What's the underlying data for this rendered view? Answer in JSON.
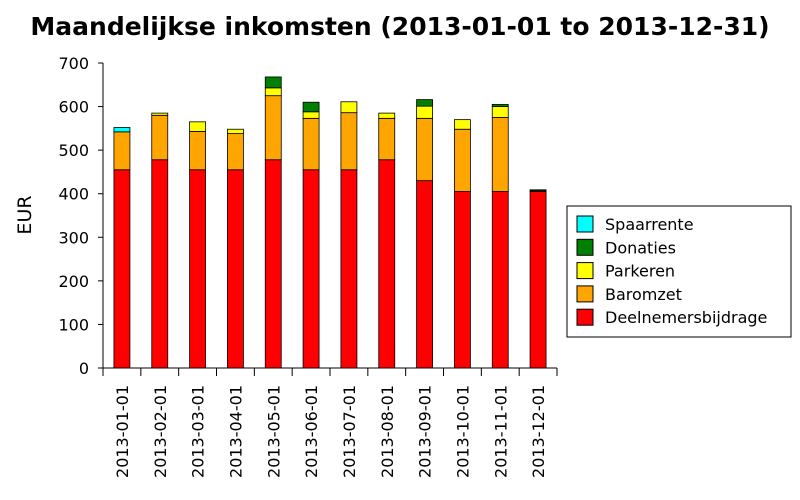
{
  "chart_data": {
    "type": "bar",
    "stacked": true,
    "title": "Maandelijkse inkomsten (2013-01-01 to 2013-12-31)",
    "xlabel": "",
    "ylabel": "EUR",
    "ylim": [
      0,
      700
    ],
    "yticks": [
      0,
      100,
      200,
      300,
      400,
      500,
      600,
      700
    ],
    "grid": false,
    "legend_position": "right",
    "categories": [
      "2013-01-01",
      "2013-02-01",
      "2013-03-01",
      "2013-04-01",
      "2013-05-01",
      "2013-06-01",
      "2013-07-01",
      "2013-08-01",
      "2013-09-01",
      "2013-10-01",
      "2013-11-01",
      "2013-12-01"
    ],
    "series": [
      {
        "name": "Deelnemersbijdrage",
        "color": "#ff0000",
        "values": [
          455,
          478,
          455,
          455,
          478,
          455,
          455,
          478,
          430,
          405,
          405,
          405
        ]
      },
      {
        "name": "Baromzet",
        "color": "#ffa500",
        "values": [
          87,
          102,
          88,
          83,
          147,
          118,
          131,
          95,
          143,
          143,
          170,
          2
        ]
      },
      {
        "name": "Parkeren",
        "color": "#ffff00",
        "values": [
          0,
          5,
          22,
          10,
          18,
          15,
          25,
          12,
          28,
          22,
          25,
          2
        ]
      },
      {
        "name": "Donaties",
        "color": "#008000",
        "values": [
          0,
          0,
          0,
          0,
          25,
          22,
          0,
          0,
          15,
          0,
          5,
          0
        ]
      },
      {
        "name": "Spaarrente",
        "color": "#00ffff",
        "values": [
          10,
          0,
          0,
          0,
          0,
          0,
          0,
          0,
          0,
          0,
          0,
          0
        ]
      }
    ]
  }
}
